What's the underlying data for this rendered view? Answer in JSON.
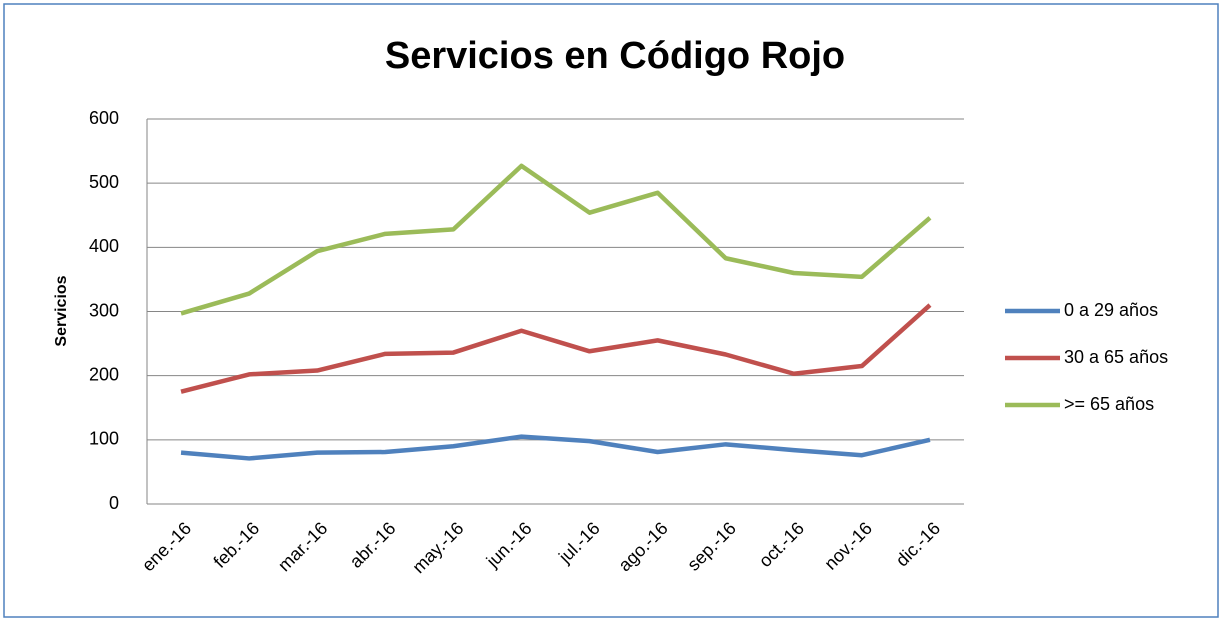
{
  "chart_data": {
    "type": "line",
    "title": "Servicios en Código Rojo",
    "ylabel": "Servicios",
    "categories": [
      "ene.-16",
      "feb.-16",
      "mar.-16",
      "abr.-16",
      "may.-16",
      "jun.-16",
      "jul.-16",
      "ago.-16",
      "sep.-16",
      "oct.-16",
      "nov.-16",
      "dic.-16"
    ],
    "series": [
      {
        "name": "0 a 29 años",
        "color": "#4f81bd",
        "values": [
          80,
          71,
          80,
          81,
          90,
          105,
          98,
          81,
          93,
          84,
          76,
          100
        ]
      },
      {
        "name": "30 a 65 años",
        "color": "#c0504d",
        "values": [
          175,
          202,
          208,
          234,
          236,
          270,
          238,
          255,
          233,
          203,
          215,
          310
        ]
      },
      {
        "name": ">= 65 años",
        "color": "#9bbb59",
        "values": [
          297,
          328,
          394,
          421,
          428,
          527,
          454,
          485,
          383,
          360,
          354,
          446
        ]
      }
    ],
    "ylim": [
      0,
      600
    ],
    "yticks": [
      0,
      100,
      200,
      300,
      400,
      500,
      600
    ],
    "grid": true,
    "legend": "right"
  }
}
